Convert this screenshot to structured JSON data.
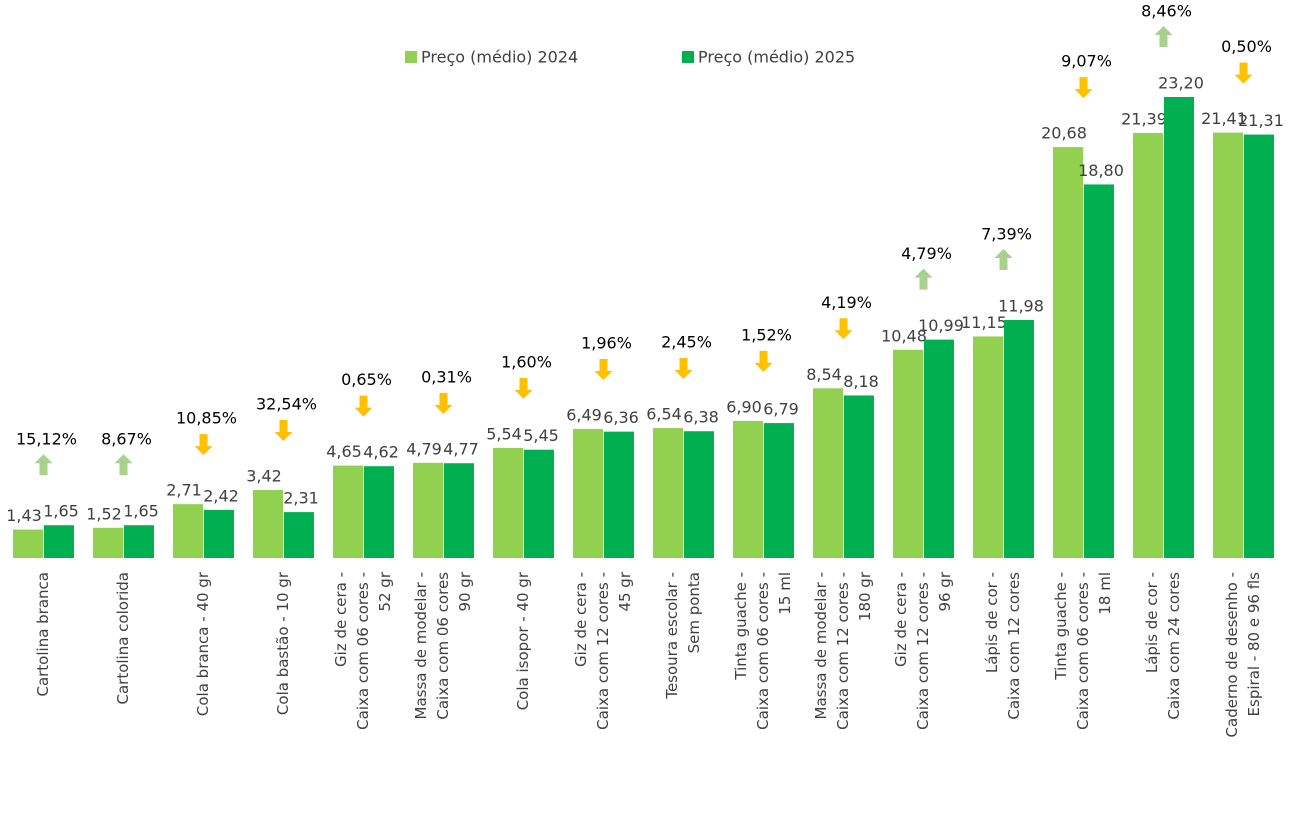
{
  "chart_data": {
    "type": "bar",
    "categories": [
      [
        "Cartolina branca"
      ],
      [
        "Cartolina colorida"
      ],
      [
        "Cola branca - 40 gr"
      ],
      [
        "Cola bastão - 10 gr"
      ],
      [
        "Giz de cera -",
        "Caixa com 06 cores -",
        "52 gr"
      ],
      [
        "Massa de modelar -",
        "Caixa com 06 cores",
        "90 gr"
      ],
      [
        "Cola isopor  - 40 gr"
      ],
      [
        "Giz de cera -",
        "Caixa com 12 cores -",
        "45 gr"
      ],
      [
        "Tesoura escolar -",
        "Sem ponta"
      ],
      [
        "Tinta guache -",
        "Caixa com 06 cores -",
        "15 ml"
      ],
      [
        "Massa de modelar -",
        "Caixa com 12 cores -",
        "180 gr"
      ],
      [
        "Giz de cera -",
        "Caixa com 12 cores -",
        "96 gr"
      ],
      [
        "Lápis de cor -",
        "Caixa com 12 cores"
      ],
      [
        "Tinta guache -",
        "Caixa com 06 cores -",
        "18 ml"
      ],
      [
        "Lápis de cor -",
        "Caixa com 24 cores"
      ],
      [
        "Caderno de desenho -",
        "Espiral - 80 e 96 fls"
      ]
    ],
    "series": [
      {
        "name": "Preço (médio) 2024",
        "color": "#92d050",
        "values": [
          1.43,
          1.52,
          2.71,
          3.42,
          4.65,
          4.79,
          5.54,
          6.49,
          6.54,
          6.9,
          8.54,
          10.48,
          11.15,
          20.68,
          21.39,
          21.41
        ],
        "value_labels": [
          "1,43",
          "1,52",
          "2,71",
          "3,42",
          "4,65",
          "4,79",
          "5,54",
          "6,49",
          "6,54",
          "6,90",
          "8,54",
          "10,48",
          "11,15",
          "20,68",
          "21,39",
          "21,41"
        ]
      },
      {
        "name": "Preço (médio) 2025",
        "color": "#00b050",
        "values": [
          1.65,
          1.65,
          2.42,
          2.31,
          4.62,
          4.77,
          5.45,
          6.36,
          6.38,
          6.79,
          8.18,
          10.99,
          11.98,
          18.8,
          23.2,
          21.31
        ],
        "value_labels": [
          "1,65",
          "1,65",
          "2,42",
          "2,31",
          "4,62",
          "4,77",
          "5,45",
          "6,36",
          "6,38",
          "6,79",
          "8,18",
          "10,99",
          "11,98",
          "18,80",
          "23,20",
          "21,31"
        ]
      }
    ],
    "annotations": [
      {
        "label": "15,12%",
        "direction": "up"
      },
      {
        "label": "8,67%",
        "direction": "up"
      },
      {
        "label": "10,85%",
        "direction": "down"
      },
      {
        "label": "32,54%",
        "direction": "down"
      },
      {
        "label": "0,65%",
        "direction": "down"
      },
      {
        "label": "0,31%",
        "direction": "down"
      },
      {
        "label": "1,60%",
        "direction": "down"
      },
      {
        "label": "1,96%",
        "direction": "down"
      },
      {
        "label": "2,45%",
        "direction": "down"
      },
      {
        "label": "1,52%",
        "direction": "down"
      },
      {
        "label": "4,19%",
        "direction": "down"
      },
      {
        "label": "4,79%",
        "direction": "up"
      },
      {
        "label": "7,39%",
        "direction": "up"
      },
      {
        "label": "9,07%",
        "direction": "down"
      },
      {
        "label": "8,46%",
        "direction": "up"
      },
      {
        "label": "0,50%",
        "direction": "down"
      }
    ],
    "arrow_colors": {
      "up": "#a9d18e",
      "down": "#ffc000"
    },
    "legend": "top"
  }
}
